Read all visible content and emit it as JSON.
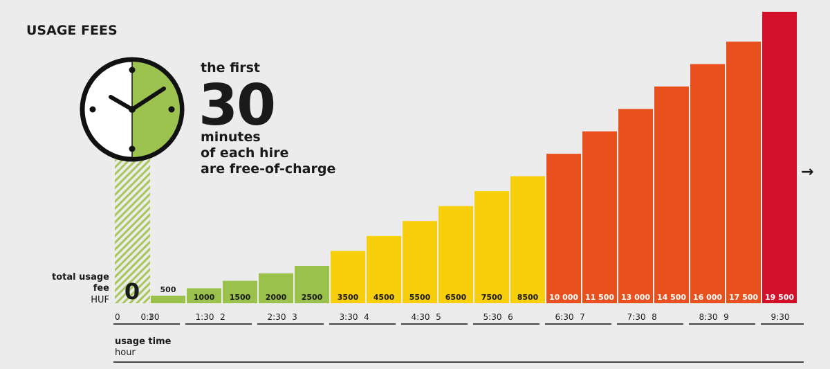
{
  "title": "USAGE FEES",
  "headline": {
    "line1": "the first",
    "big": "30",
    "line2": "minutes",
    "line3": "of each hire",
    "line4": "are free-of-charge"
  },
  "fee_label": {
    "line1": "total usage",
    "line2": "fee",
    "unit": "HUF"
  },
  "time_label": {
    "line1": "usage time",
    "unit": "hour"
  },
  "arrow": "→",
  "colors": {
    "free_hatch": "#a8c65a",
    "green": "#9ac14b",
    "yellow": "#f7cf0c",
    "orange": "#e8501e",
    "red": "#d2102a",
    "clock_face": "#9cc24f"
  },
  "chart_data": {
    "type": "bar",
    "title": "USAGE FEES",
    "xlabel": "usage time hour",
    "ylabel": "total usage fee HUF",
    "x_ticks": [
      "0",
      "0:30",
      "1",
      "1:30",
      "2",
      "2:30",
      "3",
      "3:30",
      "4",
      "4:30",
      "5",
      "5:30",
      "6",
      "6:30",
      "7",
      "7:30",
      "8",
      "8:30",
      "9",
      "9:30"
    ],
    "bars": [
      {
        "label": "0",
        "value": 0,
        "color_group": "free"
      },
      {
        "label": "500",
        "value": 500,
        "color_group": "green"
      },
      {
        "label": "1000",
        "value": 1000,
        "color_group": "green"
      },
      {
        "label": "1500",
        "value": 1500,
        "color_group": "green"
      },
      {
        "label": "2000",
        "value": 2000,
        "color_group": "green"
      },
      {
        "label": "2500",
        "value": 2500,
        "color_group": "green"
      },
      {
        "label": "3500",
        "value": 3500,
        "color_group": "yellow"
      },
      {
        "label": "4500",
        "value": 4500,
        "color_group": "yellow"
      },
      {
        "label": "5500",
        "value": 5500,
        "color_group": "yellow"
      },
      {
        "label": "6500",
        "value": 6500,
        "color_group": "yellow"
      },
      {
        "label": "7500",
        "value": 7500,
        "color_group": "yellow"
      },
      {
        "label": "8500",
        "value": 8500,
        "color_group": "yellow"
      },
      {
        "label": "10 000",
        "value": 10000,
        "color_group": "orange"
      },
      {
        "label": "11 500",
        "value": 11500,
        "color_group": "orange"
      },
      {
        "label": "13 000",
        "value": 13000,
        "color_group": "orange"
      },
      {
        "label": "14 500",
        "value": 14500,
        "color_group": "orange"
      },
      {
        "label": "16 000",
        "value": 16000,
        "color_group": "orange"
      },
      {
        "label": "17 500",
        "value": 17500,
        "color_group": "orange"
      },
      {
        "label": "19 500",
        "value": 19500,
        "color_group": "red"
      }
    ],
    "ylim": [
      0,
      19500
    ],
    "grid": false,
    "legend": "none"
  }
}
